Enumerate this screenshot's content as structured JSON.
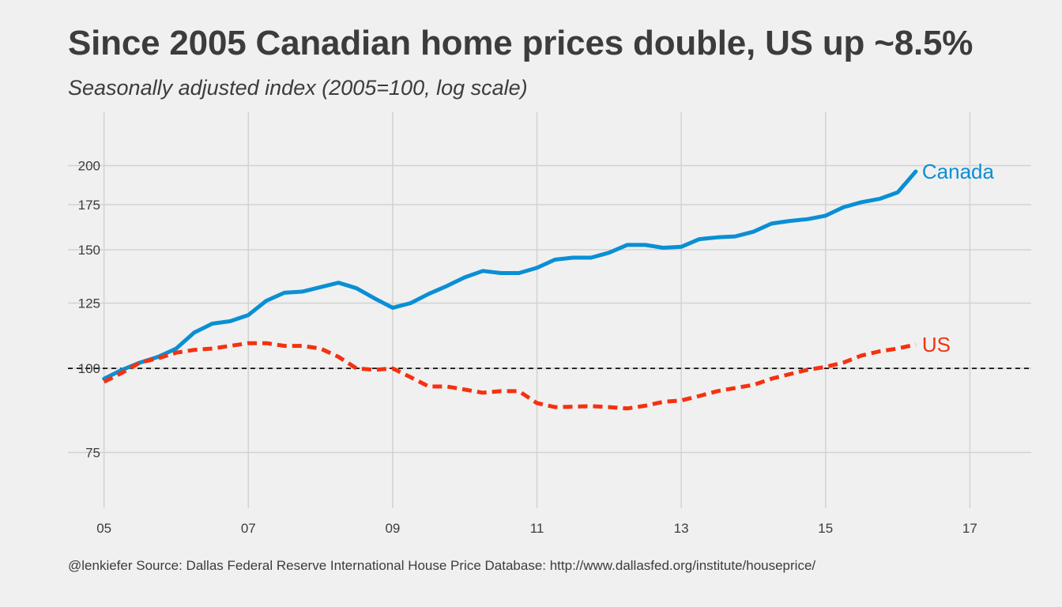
{
  "chart_data": {
    "type": "line",
    "title": "Since 2005 Canadian home prices double, US up ~8.5%",
    "subtitle": "Seasonally adjusted index (2005=100, log scale)",
    "caption": "@lenkiefer Source: Dallas Federal Reserve International House Price Database: http://www.dallasfed.org/institute/houseprice/",
    "xlabel": "",
    "ylabel": "",
    "y_scale": "log",
    "xlim": [
      2004.5,
      2017.85
    ],
    "ylim": [
      62,
      240
    ],
    "x_ticks": [
      2005,
      2007,
      2009,
      2011,
      2013,
      2015,
      2017
    ],
    "x_tick_labels": [
      "05",
      "07",
      "09",
      "11",
      "13",
      "15",
      "17"
    ],
    "y_ticks": [
      75,
      100,
      125,
      150,
      175,
      200
    ],
    "y_tick_labels": [
      "75",
      "100",
      "125",
      "150",
      "175",
      "200"
    ],
    "reference_line": {
      "y": 100,
      "style": "dashed",
      "color": "#000000"
    },
    "grid": true,
    "legend": "direct labels at line ends",
    "x": [
      2005.0,
      2005.25,
      2005.5,
      2005.75,
      2006.0,
      2006.25,
      2006.5,
      2006.75,
      2007.0,
      2007.25,
      2007.5,
      2007.75,
      2008.0,
      2008.25,
      2008.5,
      2008.75,
      2009.0,
      2009.25,
      2009.5,
      2009.75,
      2010.0,
      2010.25,
      2010.5,
      2010.75,
      2011.0,
      2011.25,
      2011.5,
      2011.75,
      2012.0,
      2012.25,
      2012.5,
      2012.75,
      2013.0,
      2013.25,
      2013.5,
      2013.75,
      2014.0,
      2014.25,
      2014.5,
      2014.75,
      2015.0,
      2015.25,
      2015.5,
      2015.75,
      2016.0,
      2016.25
    ],
    "series": [
      {
        "name": "Canada",
        "color": "#0a8fd4",
        "style": "solid",
        "values": [
          96.5,
          99.5,
          102,
          104,
          107,
          113,
          116.5,
          117.5,
          120,
          126,
          129.5,
          130,
          132,
          134,
          131.5,
          127,
          123,
          125,
          129,
          132.5,
          136.5,
          139.5,
          138.5,
          138.5,
          141,
          145,
          146,
          146,
          148.5,
          152.5,
          152.5,
          151,
          151.5,
          155.5,
          156.5,
          157,
          159.5,
          164,
          165.5,
          166.5,
          168.5,
          173.5,
          176.5,
          178.5,
          182.5,
          196
        ]
      },
      {
        "name": "US",
        "color": "#f5310f",
        "style": "dashed",
        "values": [
          95.5,
          98.5,
          102,
          103.5,
          105.5,
          106.5,
          107,
          108,
          109,
          109,
          108,
          108,
          107,
          104,
          100,
          99.5,
          100,
          97,
          94,
          94,
          93,
          92,
          92.5,
          92.5,
          88.8,
          87.6,
          87.7,
          87.9,
          87.6,
          87.2,
          88,
          89.2,
          89.6,
          91,
          92.5,
          93.5,
          94.5,
          96.5,
          98,
          99.5,
          100.5,
          102,
          104.5,
          106,
          107,
          108.5
        ]
      }
    ]
  }
}
